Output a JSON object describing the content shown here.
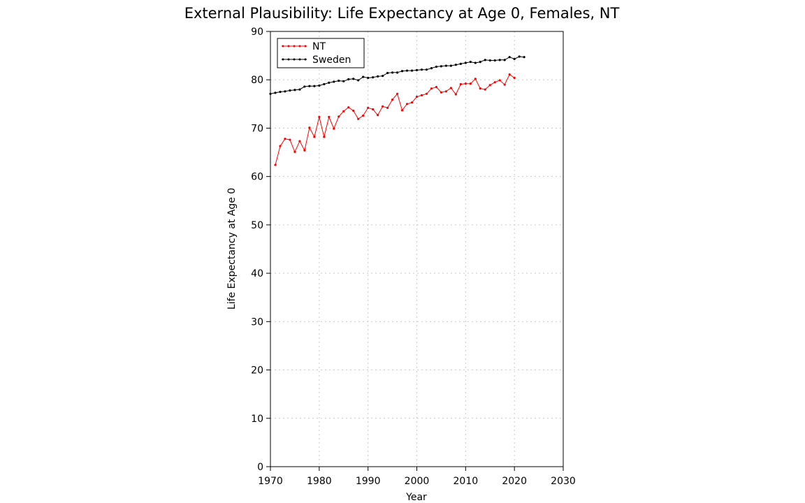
{
  "chart_data": {
    "type": "line",
    "title": "External Plausibility: Life Expectancy at Age 0, Females, NT",
    "xlabel": "Year",
    "ylabel": "Life Expectancy at Age 0",
    "xlim": [
      1970,
      2030
    ],
    "ylim": [
      0,
      90
    ],
    "xticks": [
      1970,
      1980,
      1990,
      2000,
      2010,
      2020,
      2030
    ],
    "yticks": [
      0,
      10,
      20,
      30,
      40,
      50,
      60,
      70,
      80,
      90
    ],
    "grid": true,
    "legend_position": "top-left",
    "series": [
      {
        "name": "NT",
        "color": "#ff0000",
        "x": [
          1971,
          1972,
          1973,
          1974,
          1975,
          1976,
          1977,
          1978,
          1979,
          1980,
          1981,
          1982,
          1983,
          1984,
          1985,
          1986,
          1987,
          1988,
          1989,
          1990,
          1991,
          1992,
          1993,
          1994,
          1995,
          1996,
          1997,
          1998,
          1999,
          2000,
          2001,
          2002,
          2003,
          2004,
          2005,
          2006,
          2007,
          2008,
          2009,
          2010,
          2011,
          2012,
          2013,
          2014,
          2015,
          2016,
          2017,
          2018,
          2019,
          2020
        ],
        "y": [
          62.4,
          66.3,
          67.8,
          67.6,
          65.1,
          67.3,
          65.4,
          70.1,
          68.2,
          72.3,
          68.2,
          72.3,
          69.9,
          72.4,
          73.5,
          74.3,
          73.6,
          71.9,
          72.6,
          74.2,
          73.9,
          72.7,
          74.5,
          74.2,
          75.9,
          77.1,
          73.7,
          75.0,
          75.3,
          76.5,
          76.8,
          77.1,
          78.2,
          78.5,
          77.4,
          77.6,
          78.3,
          77.0,
          79.1,
          79.2,
          79.2,
          80.2,
          78.2,
          78.0,
          78.9,
          79.5,
          79.9,
          79.0,
          81.1,
          80.4
        ]
      },
      {
        "name": "Sweden",
        "color": "#000000",
        "x": [
          1970,
          1971,
          1972,
          1973,
          1974,
          1975,
          1976,
          1977,
          1978,
          1979,
          1980,
          1981,
          1982,
          1983,
          1984,
          1985,
          1986,
          1987,
          1988,
          1989,
          1990,
          1991,
          1992,
          1993,
          1994,
          1995,
          1996,
          1997,
          1998,
          1999,
          2000,
          2001,
          2002,
          2003,
          2004,
          2005,
          2006,
          2007,
          2008,
          2009,
          2010,
          2011,
          2012,
          2013,
          2014,
          2015,
          2016,
          2017,
          2018,
          2019,
          2020,
          2021,
          2022
        ],
        "y": [
          77.1,
          77.3,
          77.5,
          77.6,
          77.8,
          77.9,
          78.0,
          78.6,
          78.7,
          78.7,
          78.8,
          79.1,
          79.4,
          79.6,
          79.8,
          79.7,
          80.1,
          80.2,
          79.9,
          80.6,
          80.4,
          80.5,
          80.7,
          80.8,
          81.4,
          81.5,
          81.5,
          81.8,
          81.9,
          81.9,
          82.0,
          82.1,
          82.1,
          82.4,
          82.7,
          82.8,
          82.9,
          82.9,
          83.1,
          83.3,
          83.5,
          83.7,
          83.5,
          83.7,
          84.1,
          84.0,
          84.0,
          84.1,
          84.1,
          84.7,
          84.3,
          84.8,
          84.7
        ]
      }
    ]
  }
}
